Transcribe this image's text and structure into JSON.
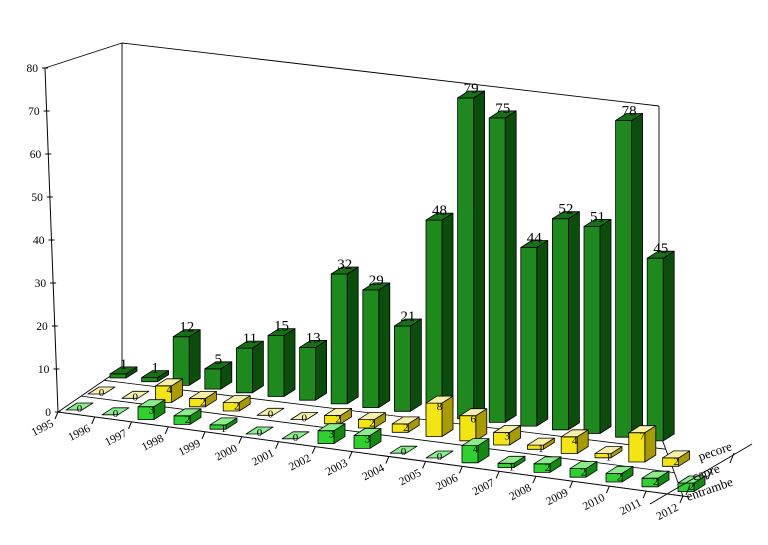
{
  "chart_data": {
    "type": "bar",
    "projection": "3d",
    "title": "",
    "xlabel": "",
    "ylabel": "",
    "categories": [
      "1995",
      "1996",
      "1997",
      "1998",
      "1999",
      "2000",
      "2001",
      "2002",
      "2003",
      "2004",
      "2005",
      "2006",
      "2007",
      "2008",
      "2009",
      "2010",
      "2011",
      "2012"
    ],
    "series": [
      {
        "name": "pecore",
        "values": [
          1,
          1,
          12,
          5,
          11,
          15,
          13,
          32,
          29,
          21,
          48,
          79,
          75,
          44,
          52,
          51,
          78,
          45
        ]
      },
      {
        "name": "capre",
        "values": [
          0,
          0,
          4,
          2,
          2,
          0,
          0,
          2,
          2,
          2,
          8,
          6,
          3,
          1,
          4,
          1,
          7,
          2
        ]
      },
      {
        "name": "entrambe",
        "values": [
          0,
          0,
          3,
          2,
          1,
          0,
          0,
          3,
          3,
          0,
          0,
          4,
          1,
          2,
          2,
          2,
          2,
          2
        ]
      }
    ],
    "ylim": [
      0,
      80
    ],
    "yticks": [
      0,
      10,
      20,
      30,
      40,
      50,
      60,
      70,
      80
    ],
    "legend_position": "right",
    "legend_labels": [
      "pecore",
      "capre",
      "entrambe"
    ],
    "bar_labels_visible": true,
    "grid": false
  },
  "colors": {
    "background": "#ffffff",
    "axis": "#000000",
    "text": "#000000",
    "pecore": {
      "front": "#1e8a1e",
      "top": "#167016",
      "side": "#0b4d0b"
    },
    "capre": {
      "front": "#f2e512",
      "top": "#f6f0a6",
      "side": "#a89b00"
    },
    "entrambe": {
      "front": "#2fd02f",
      "top": "#8aec8a",
      "side": "#128a12"
    }
  }
}
